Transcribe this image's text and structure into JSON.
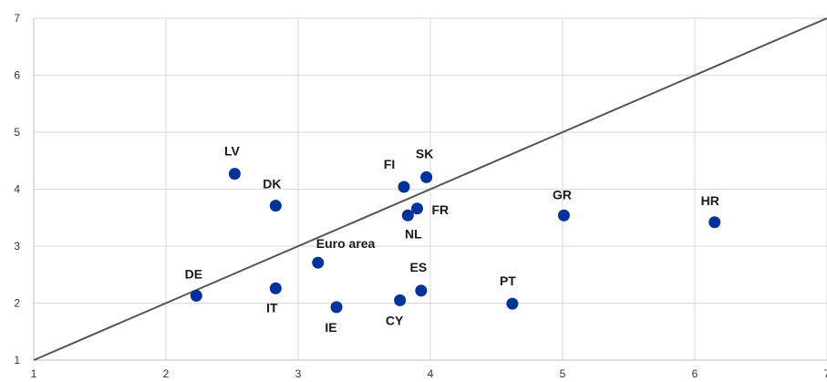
{
  "chart_data": {
    "type": "scatter",
    "xlim": [
      1,
      7
    ],
    "ylim": [
      1,
      7
    ],
    "xticks": [
      1,
      2,
      3,
      4,
      5,
      6,
      7
    ],
    "yticks": [
      1,
      2,
      3,
      4,
      5,
      6,
      7
    ],
    "grid": "vertical and horizontal",
    "reference_line": {
      "from": [
        1,
        1
      ],
      "to": [
        7,
        7
      ],
      "color": "#555555"
    },
    "point_color": "#003399",
    "points": [
      {
        "label": "LV",
        "x": 2.52,
        "y": 4.27
      },
      {
        "label": "DK",
        "x": 2.83,
        "y": 3.71
      },
      {
        "label": "DE",
        "x": 2.23,
        "y": 2.13
      },
      {
        "label": "IT",
        "x": 2.83,
        "y": 2.26
      },
      {
        "label": "IE",
        "x": 3.29,
        "y": 1.93
      },
      {
        "label": "Euro area",
        "x": 3.15,
        "y": 2.71
      },
      {
        "label": "FI",
        "x": 3.8,
        "y": 4.04
      },
      {
        "label": "SK",
        "x": 3.97,
        "y": 4.21
      },
      {
        "label": "FR",
        "x": 3.9,
        "y": 3.66
      },
      {
        "label": "NL",
        "x": 3.83,
        "y": 3.54
      },
      {
        "label": "ES",
        "x": 3.93,
        "y": 2.22
      },
      {
        "label": "CY",
        "x": 3.77,
        "y": 2.05
      },
      {
        "label": "PT",
        "x": 4.62,
        "y": 1.99
      },
      {
        "label": "GR",
        "x": 5.01,
        "y": 3.54
      },
      {
        "label": "HR",
        "x": 6.15,
        "y": 3.42
      }
    ]
  }
}
